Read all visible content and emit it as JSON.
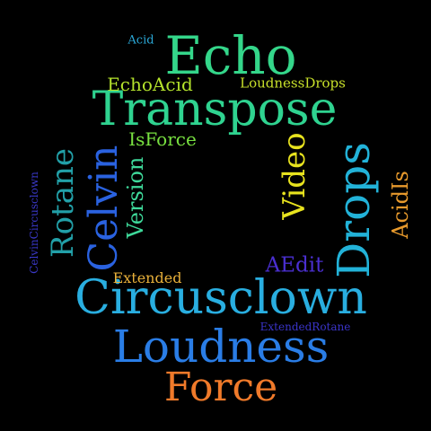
{
  "words": [
    {
      "id": "echo",
      "text": "Echo",
      "color": "#34d68a"
    },
    {
      "id": "transpose",
      "text": "Transpose",
      "color": "#2fd390"
    },
    {
      "id": "circusclown",
      "text": "Circusclown",
      "color": "#29aee0"
    },
    {
      "id": "loudness",
      "text": "Loudness",
      "color": "#2a7de6"
    },
    {
      "id": "force",
      "text": "Force",
      "color": "#f07a2a"
    },
    {
      "id": "drops",
      "text": "Drops",
      "color": "#22b2d8"
    },
    {
      "id": "celvin",
      "text": "Celvin",
      "color": "#2a62e0"
    },
    {
      "id": "rotane",
      "text": "Rotane",
      "color": "#22a0a8"
    },
    {
      "id": "video",
      "text": "Video",
      "color": "#e8e31e"
    },
    {
      "id": "version",
      "text": "Version",
      "color": "#3ed99a"
    },
    {
      "id": "isforce",
      "text": "IsForce",
      "color": "#78e040"
    },
    {
      "id": "echoacid",
      "text": "EchoAcid",
      "color": "#b4e22c"
    },
    {
      "id": "loudnessdrops",
      "text": "LoudnessDrops",
      "color": "#c8e02a"
    },
    {
      "id": "aedit",
      "text": "AEdit",
      "color": "#4a2fd0"
    },
    {
      "id": "acidis",
      "text": "AcidIs",
      "color": "#e89a2c"
    },
    {
      "id": "extended",
      "text": "Extended",
      "color": "#e8b03a"
    },
    {
      "id": "extendedrotane",
      "text": "ExtendedRotane",
      "color": "#3a34c8"
    },
    {
      "id": "celvincircusclown",
      "text": "CelvinCircusclown",
      "color": "#3a38c8"
    },
    {
      "id": "acid",
      "text": "Acid",
      "color": "#2aa7d6"
    }
  ]
}
